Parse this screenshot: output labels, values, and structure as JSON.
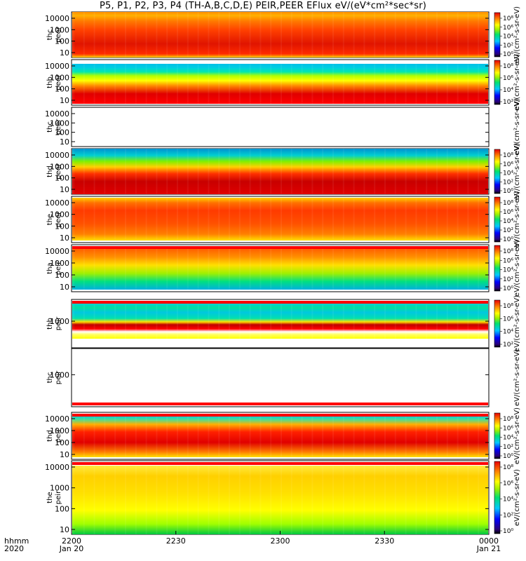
{
  "title": "P5, P1, P2, P3, P4 (TH-A,B,C,D,E) PEIR,PEER EFlux eV/(eV*cm²*sec*sr)",
  "chart_data": {
    "type": "heatmap",
    "x_axis": {
      "row_label": "hhmm",
      "year_label": "2020",
      "ticks": [
        {
          "t": 0,
          "label": "2200",
          "date": "Jan 20"
        },
        {
          "t": 30,
          "label": "2230",
          "date": ""
        },
        {
          "t": 60,
          "label": "2300",
          "date": ""
        },
        {
          "t": 90,
          "label": "2330",
          "date": ""
        },
        {
          "t": 120,
          "label": "0000",
          "date": "Jan 21"
        }
      ],
      "range_minutes": [
        0,
        120
      ]
    },
    "colorbar_label": "eV/(cm²-s-sr-eV)",
    "panels": [
      {
        "probe": "thc",
        "species": "peer",
        "yticks": [
          "10000",
          "1000",
          "100",
          "10"
        ],
        "has_data": true,
        "profile": "peer_red",
        "colorbar": [
          "10⁸",
          "10⁶",
          "10⁴",
          "10²",
          "10⁰"
        ]
      },
      {
        "probe": "thb",
        "species": "peer",
        "yticks": [
          "10000",
          "1000",
          "100",
          "10"
        ],
        "has_data": true,
        "profile": "peer_cyan",
        "colorbar": [
          "10⁸",
          "10⁶",
          "10⁴",
          "10²"
        ]
      },
      {
        "probe": "thc",
        "species": "peer",
        "yticks": [
          "10000",
          "1000",
          "100",
          "10"
        ],
        "has_data": false,
        "profile": "empty",
        "colorbar": []
      },
      {
        "probe": "thd",
        "species": "peer",
        "yticks": [
          "10000",
          "1000",
          "100",
          "10"
        ],
        "has_data": true,
        "profile": "peer_dark",
        "colorbar": [
          "10⁸",
          "10⁶",
          "10⁴",
          "10²",
          "10⁰"
        ]
      },
      {
        "probe": "the",
        "species": "peer",
        "yticks": [
          "10000",
          "1000",
          "100",
          "10"
        ],
        "has_data": true,
        "profile": "peer_warm",
        "colorbar": [
          "10⁸",
          "10⁶",
          "10⁴",
          "10²",
          "10⁰"
        ]
      },
      {
        "probe": "tha",
        "species": "peir",
        "yticks": [
          "10000",
          "1000",
          "100",
          "10"
        ],
        "has_data": true,
        "profile": "peir_green",
        "colorbar": [
          "10⁸",
          "10⁶",
          "10⁴",
          "10²",
          "10⁰"
        ]
      },
      {
        "probe": "thb",
        "species": "peir",
        "yticks": [
          "1000"
        ],
        "has_data": true,
        "profile": "peir_band",
        "colorbar": [
          "10⁸",
          "10⁶",
          "10⁴",
          "10²"
        ]
      },
      {
        "probe": "thc",
        "species": "peir",
        "yticks": [
          "1000"
        ],
        "has_data": false,
        "profile": "empty",
        "colorbar": []
      },
      {
        "probe": "thd",
        "species": "peir",
        "yticks": [
          "10000",
          "1000",
          "100",
          "10"
        ],
        "has_data": true,
        "profile": "peir_red",
        "colorbar": [
          "10⁸",
          "10⁶",
          "10⁴",
          "10²",
          "10⁰"
        ]
      },
      {
        "probe": "the",
        "species": "peir",
        "yticks": [
          "10000",
          "1000",
          "100",
          "10"
        ],
        "has_data": true,
        "profile": "peir_yel",
        "colorbar": [
          "10⁸",
          "10⁶",
          "10⁴",
          "10²",
          "10⁰"
        ]
      }
    ]
  }
}
